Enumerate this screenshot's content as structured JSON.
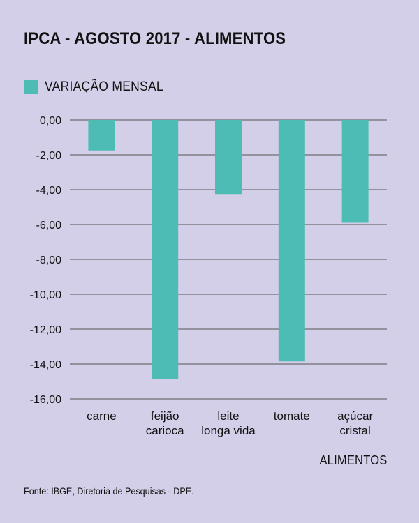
{
  "colors": {
    "background": "#d4cfe8",
    "bar": "#4cbcb4",
    "grid": "#555555"
  },
  "chart_data": {
    "type": "bar",
    "title": "IPCA - AGOSTO 2017 - ALIMENTOS",
    "legend": {
      "position": "top-left",
      "entries": [
        "VARIAÇÃO MENSAL"
      ]
    },
    "categories": [
      [
        "carne"
      ],
      [
        "feijão",
        "carioca"
      ],
      [
        "leite",
        "longa vida"
      ],
      [
        "tomate"
      ],
      [
        "açúcar",
        "cristal"
      ]
    ],
    "series": [
      {
        "name": "VARIAÇÃO MENSAL",
        "values": [
          -1.75,
          -14.85,
          -4.25,
          -13.85,
          -5.9
        ]
      }
    ],
    "xlabel": "ALIMENTOS",
    "ylabel": "",
    "ylim": [
      -16,
      0
    ],
    "yticks": [
      "0,00",
      "-2,00",
      "-4,00",
      "-6,00",
      "-8,00",
      "-10,00",
      "-12,00",
      "-14,00",
      "-16,00"
    ],
    "grid": true
  },
  "source": "Fonte: IBGE, Diretoria de Pesquisas - DPE."
}
